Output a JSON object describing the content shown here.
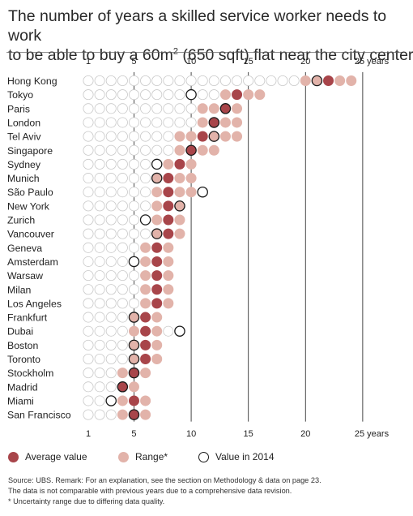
{
  "title_line1": "The number of years a skilled service worker needs to work",
  "title_line2_pre": "to be able to buy a 60m",
  "title_line2_sup": "2",
  "title_line2_post": " (650 sqft) flat near the city center",
  "colors": {
    "average": "#a8454a",
    "range": "#e2b3aa",
    "empty_fill": "#ffffff",
    "empty_stroke": "#c8c8c8",
    "value2014_stroke": "#1a1a1a",
    "axis_line": "#333333"
  },
  "legend": {
    "average": "Average value",
    "range": "Range*",
    "value2014": "Value in 2014"
  },
  "source_lines": [
    "Source: UBS. Remark: For an explanation, see the section on Methodology & data on page 23.",
    "The data is not comparable with previous years due to a comprehensive data revision.",
    "* Uncertainty range due to differing data quality."
  ],
  "chart_data": {
    "type": "dot-range",
    "x_unit": "years",
    "xlim": [
      1,
      25
    ],
    "ticks": [
      {
        "value": 1,
        "label": "1"
      },
      {
        "value": 5,
        "label": "5"
      },
      {
        "value": 10,
        "label": "10"
      },
      {
        "value": 15,
        "label": "15"
      },
      {
        "value": 20,
        "label": "20"
      },
      {
        "value": 25,
        "label": "25 years"
      }
    ],
    "rows": [
      {
        "city": "Hong Kong",
        "range": [
          20,
          24
        ],
        "average": 22,
        "value2014": 21
      },
      {
        "city": "Tokyo",
        "range": [
          13,
          16
        ],
        "average": 14,
        "value2014": 10
      },
      {
        "city": "Paris",
        "range": [
          11,
          14
        ],
        "average": 13,
        "value2014": 13
      },
      {
        "city": "London",
        "range": [
          11,
          14
        ],
        "average": 12,
        "value2014": 12
      },
      {
        "city": "Tel Aviv",
        "range": [
          9,
          14
        ],
        "average": 11,
        "value2014": 12
      },
      {
        "city": "Singapore",
        "range": [
          9,
          12
        ],
        "average": 10,
        "value2014": 10
      },
      {
        "city": "Sydney",
        "range": [
          8,
          10
        ],
        "average": 9,
        "value2014": 7
      },
      {
        "city": "Munich",
        "range": [
          7,
          10
        ],
        "average": 8,
        "value2014": 7
      },
      {
        "city": "São Paulo",
        "range": [
          7,
          10
        ],
        "average": 8,
        "value2014": 11
      },
      {
        "city": "New York",
        "range": [
          7,
          9
        ],
        "average": 8,
        "value2014": 9
      },
      {
        "city": "Zurich",
        "range": [
          7,
          9
        ],
        "average": 8,
        "value2014": 6
      },
      {
        "city": "Vancouver",
        "range": [
          7,
          9
        ],
        "average": 8,
        "value2014": 7
      },
      {
        "city": "Geneva",
        "range": [
          6,
          8
        ],
        "average": 7,
        "value2014": null
      },
      {
        "city": "Amsterdam",
        "range": [
          6,
          8
        ],
        "average": 7,
        "value2014": 5
      },
      {
        "city": "Warsaw",
        "range": [
          6,
          8
        ],
        "average": 7,
        "value2014": null
      },
      {
        "city": "Milan",
        "range": [
          6,
          8
        ],
        "average": 7,
        "value2014": null
      },
      {
        "city": "Los Angeles",
        "range": [
          6,
          8
        ],
        "average": 7,
        "value2014": null
      },
      {
        "city": "Frankfurt",
        "range": [
          5,
          7
        ],
        "average": 6,
        "value2014": 5
      },
      {
        "city": "Dubai",
        "range": [
          5,
          7
        ],
        "average": 6,
        "value2014": 9
      },
      {
        "city": "Boston",
        "range": [
          5,
          7
        ],
        "average": 6,
        "value2014": 5
      },
      {
        "city": "Toronto",
        "range": [
          5,
          7
        ],
        "average": 6,
        "value2014": 5
      },
      {
        "city": "Stockholm",
        "range": [
          4,
          6
        ],
        "average": 5,
        "value2014": 5
      },
      {
        "city": "Madrid",
        "range": [
          4,
          5
        ],
        "average": 4,
        "value2014": 4
      },
      {
        "city": "Miami",
        "range": [
          4,
          6
        ],
        "average": 5,
        "value2014": 3
      },
      {
        "city": "San Francisco",
        "range": [
          4,
          6
        ],
        "average": 5,
        "value2014": 5
      }
    ]
  }
}
